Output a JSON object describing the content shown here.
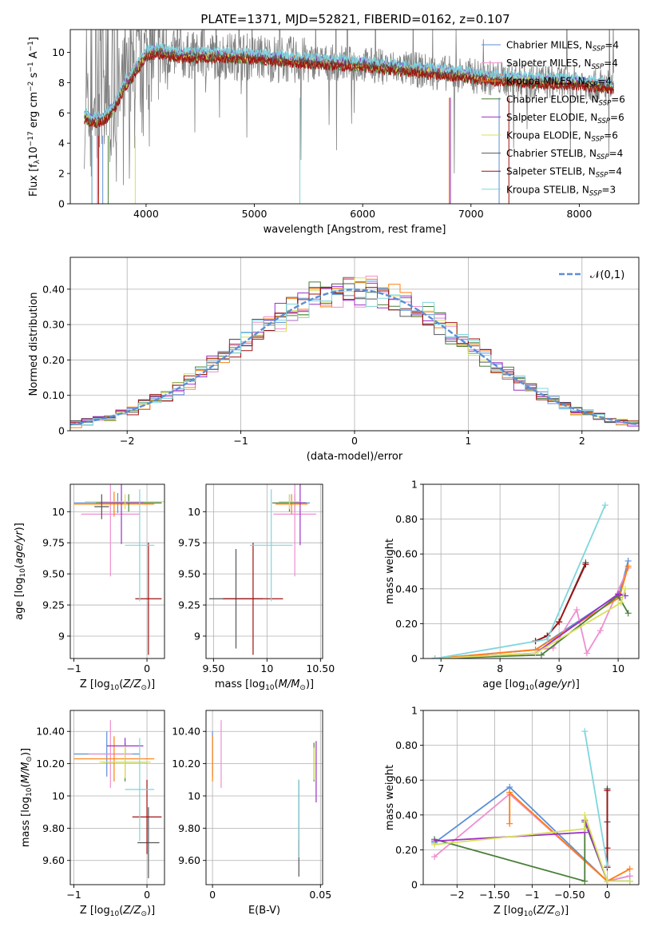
{
  "title": "PLATE=1371, MJD=52821, FIBERID=0162, z=0.107",
  "colors": {
    "chabrier_miles": "#5b8ed6",
    "salpeter_miles": "#ee8fd0",
    "kroupa_miles": "#ff7f0e",
    "chabrier_elodie": "#4a7f3a",
    "salpeter_elodie": "#9b30c8",
    "kroupa_elodie": "#d8e05a",
    "chabrier_stelib": "#555555",
    "salpeter_stelib": "#a01010",
    "kroupa_stelib": "#7fd6de",
    "gauss": "#5b8ed6",
    "green2": "#5a8a5a",
    "olive": "#c8d040"
  },
  "legend_spectrum": [
    {
      "pre": "Chabrier MILES, N",
      "sub": "SSP",
      "post": "=4",
      "color_key": "chabrier_miles"
    },
    {
      "pre": "Salpeter MILES, N",
      "sub": "SSP",
      "post": "=4",
      "color_key": "salpeter_miles"
    },
    {
      "pre": "Kroupa MILES, N",
      "sub": "SSP",
      "post": "=4",
      "color_key": "kroupa_miles"
    },
    {
      "pre": "Chabrier ELODIE, N",
      "sub": "SSP",
      "post": "=6",
      "color_key": "chabrier_elodie"
    },
    {
      "pre": "Salpeter ELODIE, N",
      "sub": "SSP",
      "post": "=6",
      "color_key": "salpeter_elodie"
    },
    {
      "pre": "Kroupa ELODIE, N",
      "sub": "SSP",
      "post": "=6",
      "color_key": "kroupa_elodie"
    },
    {
      "pre": "Chabrier STELIB, N",
      "sub": "SSP",
      "post": "=4",
      "color_key": "chabrier_stelib"
    },
    {
      "pre": "Salpeter STELIB, N",
      "sub": "SSP",
      "post": "=4",
      "color_key": "salpeter_stelib"
    },
    {
      "pre": "Kroupa STELIB, N",
      "sub": "SSP",
      "post": "=3",
      "color_key": "kroupa_stelib"
    }
  ],
  "legend_hist": {
    "label": "𝒩(0,1)",
    "color_key": "gauss"
  },
  "chart_data": [
    {
      "id": "spectrum",
      "type": "line",
      "xlabel": "wavelength [Angstrom, rest frame]",
      "ylabel": "Flux [f_λ 10^-17 erg cm^-2 s^-1 A^-1]",
      "xlim": [
        3300,
        8550
      ],
      "ylim": [
        0,
        11.5
      ],
      "xticks": [
        4000,
        5000,
        6000,
        7000,
        8000
      ],
      "yticks": [
        0,
        2,
        4,
        6,
        8,
        10
      ],
      "data_range": [
        3430,
        8320
      ],
      "continuum_x": [
        3430,
        3500,
        3600,
        3700,
        3800,
        3900,
        4000,
        4100,
        4300,
        4600,
        5000,
        5500,
        6000,
        6400,
        6800,
        7200,
        7600,
        8000,
        8320
      ],
      "continuum_y": [
        5.8,
        5.5,
        5.6,
        6.3,
        7.8,
        8.8,
        9.9,
        10.1,
        9.8,
        9.8,
        9.7,
        9.4,
        9.2,
        8.9,
        8.6,
        8.3,
        8.1,
        8.0,
        7.7
      ],
      "model_offsets": [
        0.15,
        -0.1,
        0.05,
        -0.2,
        0.1,
        -0.05,
        0.0,
        -0.25,
        0.3
      ]
    },
    {
      "id": "residual_hist",
      "type": "step",
      "xlabel": "(data-model)/error",
      "ylabel": "Normed distribution",
      "xlim": [
        -2.5,
        2.5
      ],
      "ylim": [
        0,
        0.49
      ],
      "xticks": [
        -2,
        -1,
        0,
        1,
        2
      ],
      "yticks": [
        0.0,
        0.1,
        0.2,
        0.3,
        0.4
      ],
      "bin_width": 0.1,
      "gaussian": {
        "mu": 0,
        "sigma": 1
      }
    },
    {
      "id": "age_vs_Z",
      "type": "errorbar",
      "xlabel": "Z [log10(Z/Z⊙)]",
      "ylabel": "age [log10(age/yr)]",
      "xlim": [
        -1.05,
        0.24
      ],
      "ylim": [
        8.82,
        10.22
      ],
      "xticks": [
        -1,
        0
      ],
      "yticks": [
        9.0,
        9.25,
        9.5,
        9.75,
        10.0
      ],
      "points": [
        {
          "c": "chabrier_miles",
          "x": -0.4,
          "xerr": 0.6,
          "y": 10.07,
          "yerr": 0.08
        },
        {
          "c": "salpeter_miles",
          "x": -0.5,
          "xerr": 0.4,
          "y": 9.98,
          "yerr": 0.5
        },
        {
          "c": "kroupa_miles",
          "x": -0.45,
          "xerr": 0.55,
          "y": 10.06,
          "yerr": 0.1
        },
        {
          "c": "chabrier_elodie",
          "x": -0.25,
          "xerr": 0.45,
          "y": 10.07,
          "yerr": 0.07
        },
        {
          "c": "salpeter_elodie",
          "x": -0.35,
          "xerr": 0.3,
          "y": 10.07,
          "yerr": 0.33
        },
        {
          "c": "kroupa_elodie",
          "x": -0.3,
          "xerr": 0.55,
          "y": 10.08,
          "yerr": 0.06
        },
        {
          "c": "chabrier_stelib",
          "x": -0.62,
          "xerr": 0.1,
          "y": 10.04,
          "yerr": 0.1
        },
        {
          "c": "salpeter_stelib",
          "x": 0.02,
          "xerr": 0.18,
          "y": 9.3,
          "yerr": 0.45
        },
        {
          "c": "kroupa_stelib",
          "x": -0.1,
          "xerr": 0.2,
          "y": 9.73,
          "yerr": 0.45
        }
      ]
    },
    {
      "id": "age_vs_mass",
      "type": "errorbar",
      "xlabel": "mass [log10(M/M⊙)]",
      "ylabel": "",
      "xlim": [
        9.43,
        10.52
      ],
      "ylim": [
        8.82,
        10.22
      ],
      "xticks": [
        9.5,
        10.0,
        10.5
      ],
      "yticks": [
        9.0,
        9.25,
        9.5,
        9.75,
        10.0
      ],
      "points": [
        {
          "c": "chabrier_miles",
          "x": 10.26,
          "xerr": 0.14,
          "y": 10.07,
          "yerr": 0.07
        },
        {
          "c": "salpeter_miles",
          "x": 10.26,
          "xerr": 0.2,
          "y": 9.98,
          "yerr": 0.5
        },
        {
          "c": "kroupa_miles",
          "x": 10.23,
          "xerr": 0.15,
          "y": 10.06,
          "yerr": 0.08
        },
        {
          "c": "chabrier_elodie",
          "x": 10.21,
          "xerr": 0.16,
          "y": 10.07,
          "yerr": 0.07
        },
        {
          "c": "salpeter_elodie",
          "x": 10.31,
          "xerr": 0.05,
          "y": 10.07,
          "yerr": 0.34
        },
        {
          "c": "kroupa_elodie",
          "x": 10.21,
          "xerr": 0.1,
          "y": 10.08,
          "yerr": 0.06
        },
        {
          "c": "chabrier_stelib",
          "x": 9.71,
          "xerr": 0.25,
          "y": 9.3,
          "yerr": 0.4
        },
        {
          "c": "salpeter_stelib",
          "x": 9.87,
          "xerr": 0.28,
          "y": 9.3,
          "yerr": 0.45
        },
        {
          "c": "kroupa_stelib",
          "x": 10.04,
          "xerr": 0.2,
          "y": 9.73,
          "yerr": 0.45
        }
      ]
    },
    {
      "id": "weight_vs_age",
      "type": "line",
      "xlabel": "age [log10(age/yr)]",
      "ylabel": "mass weight",
      "xlim": [
        6.7,
        10.35
      ],
      "ylim": [
        0.0,
        1.0
      ],
      "xticks": [
        7,
        8,
        9,
        10
      ],
      "yticks": [
        0.0,
        0.2,
        0.4,
        0.6,
        0.8,
        1.0
      ],
      "series": [
        {
          "c": "chabrier_miles",
          "x": [
            6.9,
            8.6,
            10.02,
            10.17
          ],
          "y": [
            0.0,
            0.05,
            0.37,
            0.56
          ]
        },
        {
          "c": "salpeter_miles",
          "x": [
            6.9,
            8.9,
            9.3,
            9.47,
            9.7,
            10.17
          ],
          "y": [
            0.0,
            0.06,
            0.28,
            0.03,
            0.16,
            0.52
          ]
        },
        {
          "c": "kroupa_miles",
          "x": [
            6.9,
            8.6,
            10.02,
            10.17
          ],
          "y": [
            0.0,
            0.05,
            0.35,
            0.53
          ]
        },
        {
          "c": "chabrier_elodie",
          "x": [
            6.9,
            8.7,
            10.0,
            10.17
          ],
          "y": [
            0.0,
            0.02,
            0.36,
            0.26
          ]
        },
        {
          "c": "salpeter_elodie",
          "x": [
            6.9,
            8.6,
            10.0,
            10.12
          ],
          "y": [
            0.0,
            0.03,
            0.37,
            0.36
          ]
        },
        {
          "c": "kroupa_elodie",
          "x": [
            6.9,
            8.6,
            10.05,
            10.12
          ],
          "y": [
            0.0,
            0.03,
            0.32,
            0.4
          ]
        },
        {
          "c": "chabrier_stelib",
          "x": [
            8.6,
            8.8,
            9.0,
            9.45
          ],
          "y": [
            0.1,
            0.13,
            0.21,
            0.55
          ]
        },
        {
          "c": "salpeter_stelib",
          "x": [
            8.6,
            8.8,
            9.0,
            9.45
          ],
          "y": [
            0.1,
            0.13,
            0.21,
            0.54
          ]
        },
        {
          "c": "kroupa_stelib",
          "x": [
            6.9,
            8.8,
            9.78
          ],
          "y": [
            0.0,
            0.11,
            0.88
          ]
        }
      ]
    },
    {
      "id": "mass_vs_Z",
      "type": "errorbar",
      "xlabel": "Z [log10(Z/Z⊙)]",
      "ylabel": "mass [log10(M/M⊙)]",
      "xlim": [
        -1.05,
        0.24
      ],
      "ylim": [
        9.45,
        10.53
      ],
      "xticks": [
        -1,
        0
      ],
      "yticks": [
        9.6,
        9.8,
        10.0,
        10.2,
        10.4
      ],
      "points": [
        {
          "c": "chabrier_miles",
          "x": -0.55,
          "xerr": 0.45,
          "y": 10.26,
          "yerr": 0.14
        },
        {
          "c": "salpeter_miles",
          "x": -0.5,
          "xerr": 0.3,
          "y": 10.26,
          "yerr": 0.21
        },
        {
          "c": "kroupa_miles",
          "x": -0.45,
          "xerr": 0.55,
          "y": 10.23,
          "yerr": 0.14
        },
        {
          "c": "chabrier_elodie",
          "x": -0.3,
          "xerr": 0.3,
          "y": 10.21,
          "yerr": 0.12
        },
        {
          "c": "salpeter_elodie",
          "x": -0.3,
          "xerr": 0.25,
          "y": 10.31,
          "yerr": 0.05
        },
        {
          "c": "kroupa_elodie",
          "x": -0.3,
          "xerr": 0.35,
          "y": 10.21,
          "yerr": 0.1
        },
        {
          "c": "chabrier_stelib",
          "x": 0.02,
          "xerr": 0.15,
          "y": 9.71,
          "yerr": 0.22
        },
        {
          "c": "salpeter_stelib",
          "x": 0.0,
          "xerr": 0.2,
          "y": 9.87,
          "yerr": 0.23
        },
        {
          "c": "kroupa_stelib",
          "x": -0.1,
          "xerr": 0.2,
          "y": 10.04,
          "yerr": 0.32
        }
      ]
    },
    {
      "id": "mass_vs_ebv",
      "type": "errorbar",
      "xlabel": "E(B-V)",
      "ylabel": "",
      "xlim": [
        -0.003,
        0.051
      ],
      "ylim": [
        9.45,
        10.53
      ],
      "xticks": [
        0.0,
        0.05
      ],
      "yticks": [
        9.6,
        9.8,
        10.0,
        10.2,
        10.4
      ],
      "points": [
        {
          "c": "chabrier_miles",
          "x": 0.0,
          "xerr": 0.0,
          "y": 10.26,
          "yerr": 0.14
        },
        {
          "c": "salpeter_miles",
          "x": 0.004,
          "xerr": 0.0,
          "y": 10.26,
          "yerr": 0.21
        },
        {
          "c": "kroupa_miles",
          "x": 0.0,
          "xerr": 0.0,
          "y": 10.23,
          "yerr": 0.14
        },
        {
          "c": "chabrier_elodie",
          "x": 0.047,
          "xerr": 0.0,
          "y": 10.21,
          "yerr": 0.12
        },
        {
          "c": "salpeter_elodie",
          "x": 0.048,
          "xerr": 0.0,
          "y": 10.15,
          "yerr": 0.19
        },
        {
          "c": "kroupa_elodie",
          "x": 0.047,
          "xerr": 0.0,
          "y": 10.2,
          "yerr": 0.1
        },
        {
          "c": "chabrier_stelib",
          "x": 0.04,
          "xerr": 0.0,
          "y": 9.8,
          "yerr": 0.3
        },
        {
          "c": "salpeter_stelib",
          "x": 0.04,
          "xerr": 0.0,
          "y": 9.68,
          "yerr": 0.05
        },
        {
          "c": "kroupa_stelib",
          "x": 0.04,
          "xerr": 0.0,
          "y": 9.86,
          "yerr": 0.24
        }
      ]
    },
    {
      "id": "weight_vs_Z",
      "type": "line",
      "xlabel": "Z [log10(Z/Z⊙)]",
      "ylabel": "mass weight",
      "xlim": [
        -2.45,
        0.42
      ],
      "ylim": [
        0.0,
        1.0
      ],
      "xticks": [
        -2.0,
        -1.5,
        -1.0,
        -0.5,
        0.0
      ],
      "yticks": [
        0.0,
        0.2,
        0.4,
        0.6,
        0.8,
        1.0
      ],
      "series": [
        {
          "c": "chabrier_miles",
          "x": [
            -2.3,
            -1.3,
            0.0,
            0.3
          ],
          "y": [
            0.24,
            0.56,
            0.02,
            0.05
          ]
        },
        {
          "c": "salpeter_miles",
          "x": [
            -2.3,
            -1.3,
            0.0,
            0.3
          ],
          "y": [
            0.16,
            0.52,
            0.02,
            0.05
          ]
        },
        {
          "c": "kroupa_miles",
          "x": [
            -1.3,
            -1.3,
            0.0,
            0.3
          ],
          "y": [
            0.35,
            0.53,
            0.02,
            0.09
          ]
        },
        {
          "c": "chabrier_elodie",
          "x": [
            -2.3,
            -0.3,
            -0.3,
            0.0,
            0.3
          ],
          "y": [
            0.26,
            0.02,
            0.36,
            0.02,
            0.02
          ]
        },
        {
          "c": "salpeter_elodie",
          "x": [
            -2.3,
            -0.3,
            -0.3,
            0.0
          ],
          "y": [
            0.25,
            0.3,
            0.37,
            0.02
          ]
        },
        {
          "c": "kroupa_elodie",
          "x": [
            -2.3,
            -0.3,
            -0.3,
            0.0,
            0.3
          ],
          "y": [
            0.23,
            0.32,
            0.4,
            0.02,
            0.02
          ]
        },
        {
          "c": "chabrier_stelib",
          "x": [
            0.0,
            0.0,
            0.0
          ],
          "y": [
            0.1,
            0.36,
            0.55
          ]
        },
        {
          "c": "salpeter_stelib",
          "x": [
            0.0,
            0.0,
            0.0
          ],
          "y": [
            0.1,
            0.21,
            0.54
          ]
        },
        {
          "c": "kroupa_stelib",
          "x": [
            -0.3,
            0.0
          ],
          "y": [
            0.88,
            0.11
          ]
        }
      ]
    }
  ]
}
